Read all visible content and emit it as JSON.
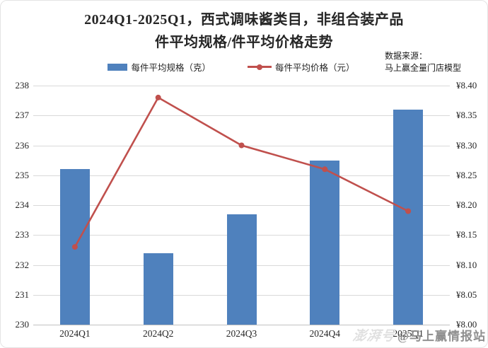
{
  "title": {
    "line1": "2024Q1-2025Q1，西式调味酱类目，非组合装产品",
    "line2": "件平均规格/件平均价格走势"
  },
  "source": {
    "line1": "数据来源：",
    "line2": "马上赢全量门店模型"
  },
  "legend": {
    "bar_label": "每件平均规格（克）",
    "line_label": "每件平均价格（元）"
  },
  "watermark": {
    "platform": "澎湃号",
    "account": "@马上赢情报站"
  },
  "colors": {
    "bar": "#4f81bd",
    "line": "#c0504d",
    "grid": "#d9d9d9",
    "axis_line": "#c2c2c2",
    "text": "#262626",
    "watermark_platform": "#e0e0e0",
    "watermark_account": "#8f8f8f"
  },
  "chart_data": {
    "type": "bar",
    "subtype": "bar+line combo, dual axis",
    "title": "2024Q1-2025Q1，西式调味酱类目，非组合装产品 件平均规格/件平均价格走势",
    "categories": [
      "2024Q1",
      "2024Q2",
      "2024Q3",
      "2024Q4",
      "2025Q1"
    ],
    "series": [
      {
        "name": "每件平均规格（克）",
        "type": "bar",
        "axis": "left",
        "values": [
          235.2,
          232.4,
          233.7,
          235.5,
          237.2
        ]
      },
      {
        "name": "每件平均价格（元）",
        "type": "line",
        "axis": "right",
        "values": [
          8.13,
          8.38,
          8.3,
          8.26,
          8.19
        ]
      }
    ],
    "left_axis": {
      "min": 230,
      "max": 238,
      "step": 1,
      "tick_labels": [
        "238",
        "237",
        "236",
        "235",
        "234",
        "233",
        "232",
        "231",
        "230"
      ]
    },
    "right_axis": {
      "min": 8.0,
      "max": 8.4,
      "step": 0.05,
      "tick_labels": [
        "¥8.40",
        "¥8.35",
        "¥8.30",
        "¥8.25",
        "¥8.20",
        "¥8.15",
        "¥8.10",
        "¥8.05",
        "¥8.00"
      ]
    },
    "grid": true,
    "legend_position": "top"
  }
}
